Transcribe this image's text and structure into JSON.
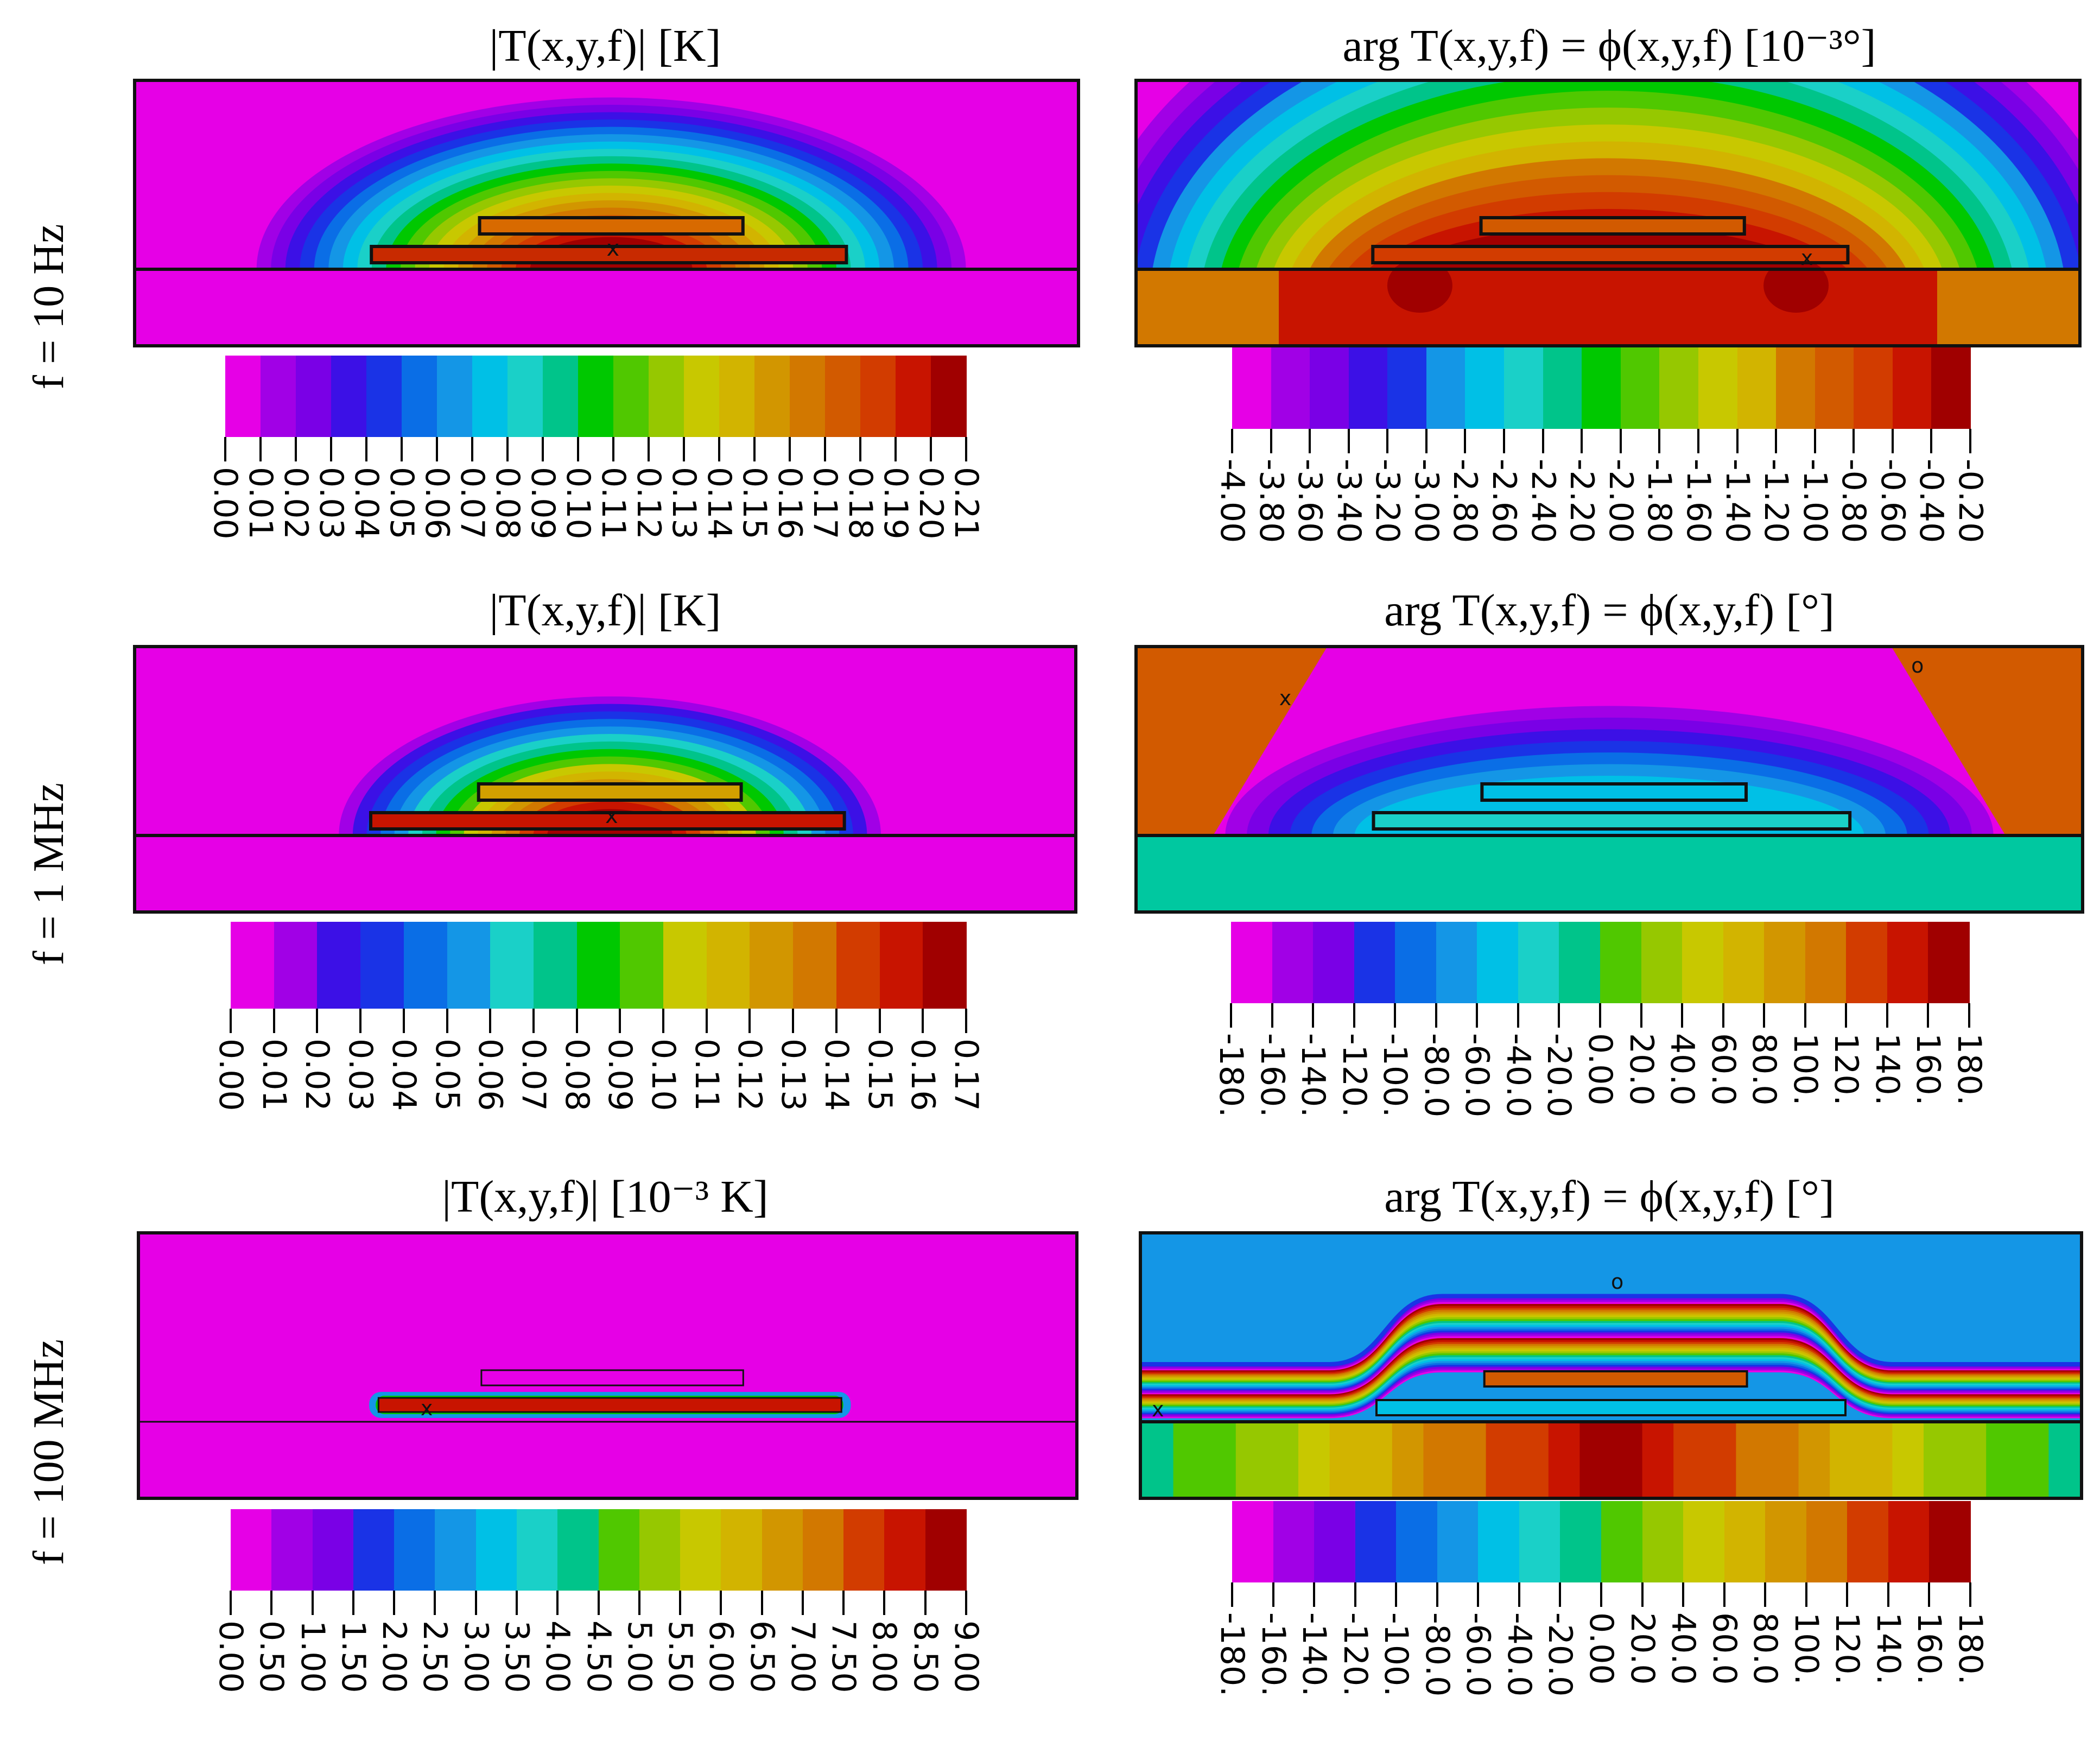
{
  "rows": [
    {
      "row_label": "f = 10 Hz",
      "magnitude": {
        "title": "|T(x,y,f)| [K]",
        "ticks": [
          "0.00",
          "0.01",
          "0.02",
          "0.03",
          "0.04",
          "0.05",
          "0.06",
          "0.07",
          "0.08",
          "0.09",
          "0.10",
          "0.11",
          "0.12",
          "0.13",
          "0.14",
          "0.15",
          "0.16",
          "0.17",
          "0.18",
          "0.19",
          "0.20",
          "0.21"
        ]
      },
      "phase": {
        "title": "arg T(x,y,f) = ϕ(x,y,f) [10⁻³°]",
        "ticks": [
          "-4.00",
          "-3.80",
          "-3.60",
          "-3.40",
          "-3.20",
          "-3.00",
          "-2.80",
          "-2.60",
          "-2.40",
          "-2.20",
          "-2.00",
          "-1.80",
          "-1.60",
          "-1.40",
          "-1.20",
          "-1.00",
          "-0.80",
          "-0.60",
          "-0.40",
          "-0.20"
        ]
      }
    },
    {
      "row_label": "f = 1 MHz",
      "magnitude": {
        "title": "|T(x,y,f)| [K]",
        "ticks": [
          "0.00",
          "0.01",
          "0.02",
          "0.03",
          "0.04",
          "0.05",
          "0.06",
          "0.07",
          "0.08",
          "0.09",
          "0.10",
          "0.11",
          "0.12",
          "0.13",
          "0.14",
          "0.15",
          "0.16",
          "0.17"
        ]
      },
      "phase": {
        "title": "arg T(x,y,f) = ϕ(x,y,f) [°]",
        "ticks": [
          "-180.",
          "-160.",
          "-140.",
          "-120.",
          "-100.",
          "-80.0",
          "-60.0",
          "-40.0",
          "-20.0",
          "0.00",
          "20.0",
          "40.0",
          "60.0",
          "80.0",
          "100.",
          "120.",
          "140.",
          "160.",
          "180."
        ]
      }
    },
    {
      "row_label": "f = 100 MHz",
      "magnitude": {
        "title": "|T(x,y,f)| [10⁻³ K]",
        "ticks": [
          "0.00",
          "0.50",
          "1.00",
          "1.50",
          "2.00",
          "2.50",
          "3.00",
          "3.50",
          "4.00",
          "4.50",
          "5.00",
          "5.50",
          "6.00",
          "6.50",
          "7.00",
          "7.50",
          "8.00",
          "8.50",
          "9.00"
        ]
      },
      "phase": {
        "title": "arg T(x,y,f) = ϕ(x,y,f) [°]",
        "ticks": [
          "-180.",
          "-160.",
          "-140.",
          "-120.",
          "-100.",
          "-80.0",
          "-60.0",
          "-40.0",
          "-20.0",
          "0.00",
          "20.0",
          "40.0",
          "60.0",
          "80.0",
          "100.",
          "120.",
          "140.",
          "160.",
          "180."
        ]
      }
    }
  ],
  "palette": [
    "#e600e6",
    "#a100e6",
    "#7a00e6",
    "#3c10e6",
    "#1a33e6",
    "#0a6ee6",
    "#1496e6",
    "#00c0e6",
    "#1ad0c8",
    "#00c48a",
    "#00c800",
    "#50c800",
    "#96c800",
    "#c8c800",
    "#d2b400",
    "#d29600",
    "#d27800",
    "#d25a00",
    "#d23c00",
    "#c81400",
    "#a00000"
  ],
  "chart_data": [
    {
      "type": "heatmap",
      "title": "|T(x,y,f)| [K]",
      "frequency": "f = 10 Hz",
      "colorbar": [
        0.0,
        0.01,
        0.02,
        0.03,
        0.04,
        0.05,
        0.06,
        0.07,
        0.08,
        0.09,
        0.1,
        0.11,
        0.12,
        0.13,
        0.14,
        0.15,
        0.16,
        0.17,
        0.18,
        0.19,
        0.2,
        0.21
      ]
    },
    {
      "type": "heatmap",
      "title": "arg T(x,y,f) = ϕ(x,y,f) [10⁻³°]",
      "frequency": "f = 10 Hz",
      "colorbar": [
        -4.0,
        -3.8,
        -3.6,
        -3.4,
        -3.2,
        -3.0,
        -2.8,
        -2.6,
        -2.4,
        -2.2,
        -2.0,
        -1.8,
        -1.6,
        -1.4,
        -1.2,
        -1.0,
        -0.8,
        -0.6,
        -0.4,
        -0.2
      ]
    },
    {
      "type": "heatmap",
      "title": "|T(x,y,f)| [K]",
      "frequency": "f = 1 MHz",
      "colorbar": [
        0.0,
        0.01,
        0.02,
        0.03,
        0.04,
        0.05,
        0.06,
        0.07,
        0.08,
        0.09,
        0.1,
        0.11,
        0.12,
        0.13,
        0.14,
        0.15,
        0.16,
        0.17
      ]
    },
    {
      "type": "heatmap",
      "title": "arg T(x,y,f) = ϕ(x,y,f) [°]",
      "frequency": "f = 1 MHz",
      "colorbar": [
        -180,
        -160,
        -140,
        -120,
        -100,
        -80,
        -60,
        -40,
        -20,
        0,
        20,
        40,
        60,
        80,
        100,
        120,
        140,
        160,
        180
      ]
    },
    {
      "type": "heatmap",
      "title": "|T(x,y,f)| [10⁻³ K]",
      "frequency": "f = 100 MHz",
      "colorbar": [
        0.0,
        0.5,
        1.0,
        1.5,
        2.0,
        2.5,
        3.0,
        3.5,
        4.0,
        4.5,
        5.0,
        5.5,
        6.0,
        6.5,
        7.0,
        7.5,
        8.0,
        8.5,
        9.0
      ]
    },
    {
      "type": "heatmap",
      "title": "arg T(x,y,f) = ϕ(x,y,f) [°]",
      "frequency": "f = 100 MHz",
      "colorbar": [
        -180,
        -160,
        -140,
        -120,
        -100,
        -80,
        -60,
        -40,
        -20,
        0,
        20,
        40,
        60,
        80,
        100,
        120,
        140,
        160,
        180
      ]
    }
  ]
}
